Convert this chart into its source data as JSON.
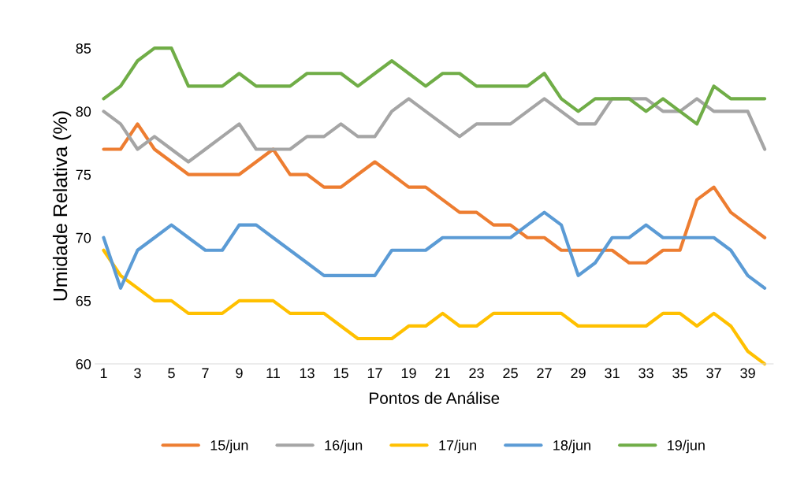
{
  "chart_data": {
    "type": "line",
    "xlabel": "Pontos de Análise",
    "ylabel": "Umidade Relativa (%)",
    "categories": [
      "1",
      null,
      "3",
      null,
      "5",
      null,
      "7",
      null,
      "9",
      null,
      "11",
      null,
      "13",
      null,
      "15",
      null,
      "17",
      null,
      "19",
      null,
      "21",
      null,
      "23",
      null,
      "25",
      null,
      "27",
      null,
      "29",
      null,
      "31",
      null,
      "33",
      null,
      "35",
      null,
      "37",
      null,
      "39",
      null
    ],
    "series": [
      {
        "name": "15/jun",
        "color": "#ed7d31",
        "values": [
          77,
          77,
          79,
          77,
          76,
          75,
          75,
          75,
          75,
          76,
          77,
          75,
          75,
          74,
          74,
          75,
          76,
          75,
          74,
          74,
          73,
          72,
          72,
          71,
          71,
          70,
          70,
          69,
          69,
          69,
          69,
          68,
          68,
          69,
          69,
          73,
          74,
          72,
          71,
          70
        ]
      },
      {
        "name": "16/jun",
        "color": "#a5a5a5",
        "values": [
          80,
          79,
          77,
          78,
          77,
          76,
          77,
          78,
          79,
          77,
          77,
          77,
          78,
          78,
          79,
          78,
          78,
          80,
          81,
          80,
          79,
          78,
          79,
          79,
          79,
          80,
          81,
          80,
          79,
          79,
          81,
          81,
          81,
          80,
          80,
          81,
          80,
          80,
          80,
          77
        ]
      },
      {
        "name": "17/jun",
        "color": "#ffc000",
        "values": [
          69,
          67,
          66,
          65,
          65,
          64,
          64,
          64,
          65,
          65,
          65,
          64,
          64,
          64,
          63,
          62,
          62,
          62,
          63,
          63,
          64,
          63,
          63,
          64,
          64,
          64,
          64,
          64,
          63,
          63,
          63,
          63,
          63,
          64,
          64,
          63,
          64,
          63,
          61,
          60
        ]
      },
      {
        "name": "18/jun",
        "color": "#5b9bd5",
        "values": [
          70,
          66,
          69,
          70,
          71,
          70,
          69,
          69,
          71,
          71,
          70,
          69,
          68,
          67,
          67,
          67,
          67,
          69,
          69,
          69,
          70,
          70,
          70,
          70,
          70,
          71,
          72,
          71,
          67,
          68,
          70,
          70,
          71,
          70,
          70,
          70,
          70,
          69,
          67,
          66
        ]
      },
      {
        "name": "19/jun",
        "color": "#70ad47",
        "values": [
          81,
          82,
          84,
          85,
          85,
          82,
          82,
          82,
          83,
          82,
          82,
          82,
          83,
          83,
          83,
          82,
          83,
          84,
          83,
          82,
          83,
          83,
          82,
          82,
          82,
          82,
          83,
          81,
          80,
          81,
          81,
          81,
          80,
          81,
          80,
          79,
          82,
          81,
          81,
          81
        ]
      }
    ],
    "ylim": [
      60,
      85
    ],
    "yticks": [
      60,
      65,
      70,
      75,
      80,
      85
    ],
    "grid": false,
    "legend": "bottom",
    "marker": "none",
    "line_style": "solid"
  }
}
